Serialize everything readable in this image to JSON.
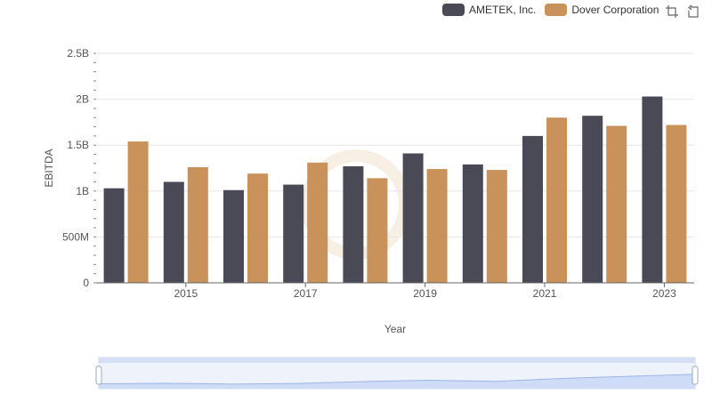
{
  "legend": {
    "items": [
      {
        "label": "AMETEK, Inc.",
        "color": "#4a4a56"
      },
      {
        "label": "Dover Corporation",
        "color": "#c8925a"
      }
    ]
  },
  "toolbox": {
    "icons": [
      "zoom-icon",
      "restore-icon"
    ]
  },
  "chart_data": {
    "type": "bar",
    "categories": [
      "2014",
      "2015",
      "2016",
      "2017",
      "2018",
      "2019",
      "2020",
      "2021",
      "2022",
      "2023"
    ],
    "series": [
      {
        "name": "AMETEK, Inc.",
        "color": "#4a4a56",
        "values": [
          1.03,
          1.1,
          1.01,
          1.07,
          1.27,
          1.41,
          1.29,
          1.6,
          1.82,
          2.03
        ]
      },
      {
        "name": "Dover Corporation",
        "color": "#c8925a",
        "values": [
          1.54,
          1.26,
          1.19,
          1.31,
          1.14,
          1.24,
          1.23,
          1.8,
          1.71,
          1.72
        ]
      }
    ],
    "values_unit": "billions",
    "xlabel": "Year",
    "ylabel": "EBITDA",
    "ylim": [
      0,
      2.5
    ],
    "yticks": [
      0,
      0.5,
      1,
      1.5,
      2,
      2.5
    ],
    "ytick_labels": [
      "0",
      "500M",
      "1B",
      "1.5B",
      "2B",
      "2.5B"
    ],
    "xtick_labels_shown": [
      "2015",
      "2017",
      "2019",
      "2021",
      "2023"
    ],
    "grid": "horizontal",
    "legend_position": "top-right",
    "data_zoom": true
  }
}
